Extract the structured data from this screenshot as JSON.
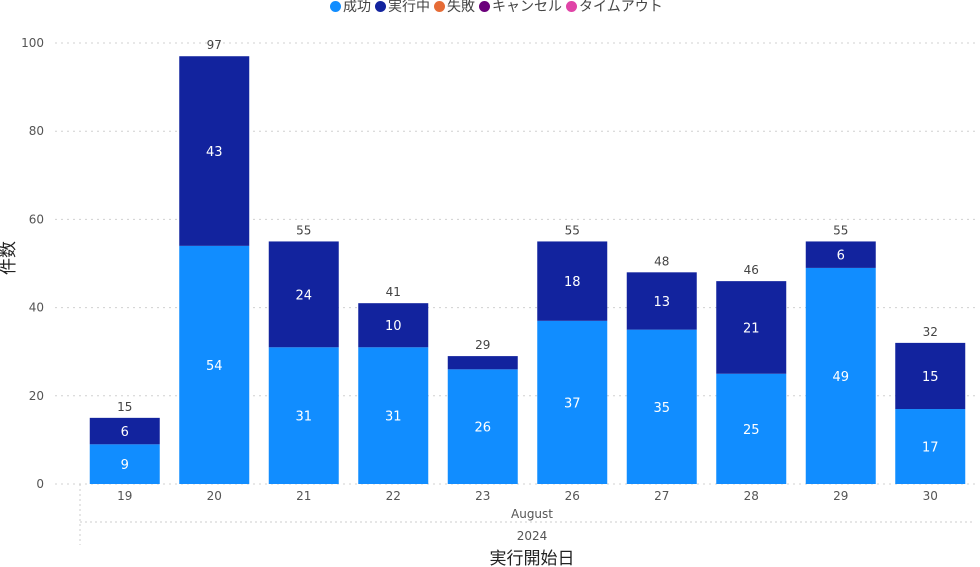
{
  "legend": {
    "items": [
      {
        "label": "成功",
        "color": "#118DFF"
      },
      {
        "label": "実行中",
        "color": "#12239E"
      },
      {
        "label": "失敗",
        "color": "#E66C37"
      },
      {
        "label": "キャンセル",
        "color": "#6B007B"
      },
      {
        "label": "タイムアウト",
        "color": "#E044A7"
      }
    ]
  },
  "chart_data": {
    "type": "bar",
    "stacked": true,
    "categories": [
      "19",
      "20",
      "21",
      "22",
      "23",
      "26",
      "27",
      "28",
      "29",
      "30"
    ],
    "x_group_month": "August",
    "x_group_year": "2024",
    "xlabel": "実行開始日",
    "ylabel": "件数",
    "ylim": [
      0,
      100
    ],
    "yticks": [
      0,
      20,
      40,
      60,
      80,
      100
    ],
    "grid": true,
    "legend_position": "top",
    "series": [
      {
        "name": "成功",
        "color": "#118DFF",
        "values": [
          9,
          54,
          31,
          31,
          26,
          37,
          35,
          25,
          49,
          17
        ],
        "labels_shown": [
          true,
          true,
          true,
          true,
          true,
          true,
          true,
          true,
          true,
          true
        ]
      },
      {
        "name": "実行中",
        "color": "#12239E",
        "values": [
          6,
          43,
          24,
          10,
          3,
          18,
          13,
          21,
          6,
          15
        ],
        "labels_shown": [
          true,
          true,
          true,
          true,
          false,
          true,
          true,
          true,
          true,
          true
        ]
      }
    ],
    "totals": [
      15,
      97,
      55,
      41,
      29,
      55,
      48,
      46,
      55,
      32
    ]
  }
}
